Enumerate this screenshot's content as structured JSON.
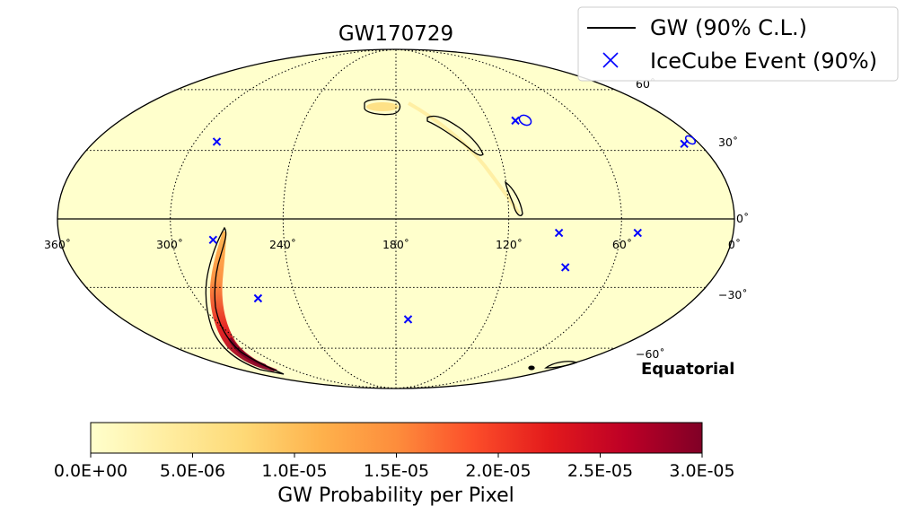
{
  "chart_data": {
    "type": "skymap",
    "projection": "mollweide",
    "title": "GW170729",
    "coordinate_frame": "Equatorial",
    "ra_tick_labels": [
      "360˚",
      "300˚",
      "240˚",
      "180˚",
      "120˚",
      "60˚",
      "0˚"
    ],
    "dec_tick_labels": [
      "60˚",
      "30˚",
      "0˚",
      "−30˚",
      "−60˚"
    ],
    "ra_gridlines_deg": [
      0,
      60,
      120,
      180,
      240,
      300,
      360
    ],
    "dec_gridlines_deg": [
      -60,
      -30,
      0,
      30,
      60
    ],
    "legend": {
      "placement": "top-right",
      "entries": [
        {
          "label": "GW (90% C.L.)",
          "marker": "line",
          "color": "#000000"
        },
        {
          "label": "IceCube Event (90%)",
          "marker": "x",
          "color": "#0000ff"
        }
      ]
    },
    "icecube_events": [
      {
        "ra": 287,
        "dec": 34
      },
      {
        "ra": 9,
        "dec": 33
      },
      {
        "ra": 102,
        "dec": 44
      },
      {
        "ra": 278,
        "dec": -9
      },
      {
        "ra": 93,
        "dec": -6
      },
      {
        "ra": 51,
        "dec": -6
      },
      {
        "ra": 86,
        "dec": -21
      },
      {
        "ra": 263,
        "dec": -35
      },
      {
        "ra": 172,
        "dec": -45
      }
    ],
    "gw_region_main": [
      {
        "ra": 295,
        "dec": -10
      },
      {
        "ra": 285,
        "dec": -20
      },
      {
        "ra": 278,
        "dec": -35
      },
      {
        "ra": 268,
        "dec": -52
      },
      {
        "ra": 255,
        "dec": -68
      },
      {
        "ra": 248,
        "dec": -76
      }
    ],
    "colorbar": {
      "label": "GW Probability per Pixel",
      "min": 0,
      "max": 3e-05,
      "tick_labels": [
        "0.0E+00",
        "5.0E-06",
        "1.0E-05",
        "1.5E-05",
        "2.0E-05",
        "2.5E-05",
        "3.0E-05"
      ],
      "colormap": "YlOrRd",
      "colors": [
        "#ffffcc",
        "#ffeda0",
        "#fed976",
        "#feb24c",
        "#fd8d3c",
        "#fc4e2a",
        "#e31a1c",
        "#bd0026",
        "#800026"
      ]
    },
    "background_color": "#ffffcc",
    "grid": true
  }
}
